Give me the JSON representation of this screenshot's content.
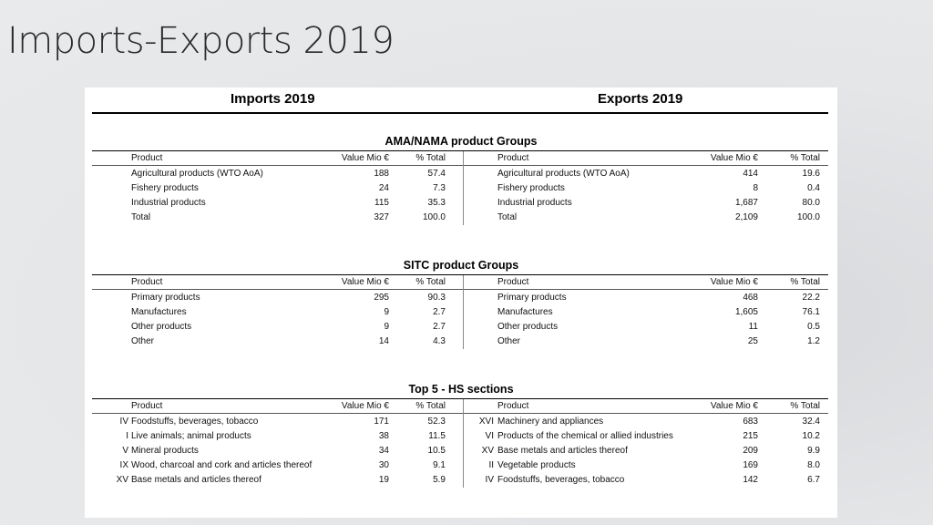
{
  "slide": {
    "title": "Imports-Exports 2019"
  },
  "headers": {
    "imports": "Imports 2019",
    "exports": "Exports 2019"
  },
  "columns": {
    "product": "Product",
    "value": "Value Mio €",
    "pct": "% Total"
  },
  "sections": [
    {
      "title": "AMA/NAMA product Groups",
      "imports": [
        {
          "num": "",
          "product": "Agricultural products (WTO AoA)",
          "value": "188",
          "pct": "57.4"
        },
        {
          "num": "",
          "product": "Fishery products",
          "value": "24",
          "pct": "7.3"
        },
        {
          "num": "",
          "product": "Industrial products",
          "value": "115",
          "pct": "35.3"
        },
        {
          "num": "",
          "product": "Total",
          "value": "327",
          "pct": "100.0"
        }
      ],
      "exports": [
        {
          "num": "",
          "product": "Agricultural products (WTO AoA)",
          "value": "414",
          "pct": "19.6"
        },
        {
          "num": "",
          "product": "Fishery products",
          "value": "8",
          "pct": "0.4"
        },
        {
          "num": "",
          "product": "Industrial products",
          "value": "1,687",
          "pct": "80.0"
        },
        {
          "num": "",
          "product": "Total",
          "value": "2,109",
          "pct": "100.0"
        }
      ]
    },
    {
      "title": "SITC product Groups",
      "imports": [
        {
          "num": "",
          "product": "Primary products",
          "value": "295",
          "pct": "90.3"
        },
        {
          "num": "",
          "product": "Manufactures",
          "value": "9",
          "pct": "2.7"
        },
        {
          "num": "",
          "product": "Other products",
          "value": "9",
          "pct": "2.7"
        },
        {
          "num": "",
          "product": "Other",
          "value": "14",
          "pct": "4.3"
        }
      ],
      "exports": [
        {
          "num": "",
          "product": "Primary products",
          "value": "468",
          "pct": "22.2"
        },
        {
          "num": "",
          "product": "Manufactures",
          "value": "1,605",
          "pct": "76.1"
        },
        {
          "num": "",
          "product": "Other products",
          "value": "11",
          "pct": "0.5"
        },
        {
          "num": "",
          "product": "Other",
          "value": "25",
          "pct": "1.2"
        }
      ]
    },
    {
      "title": "Top 5  - HS sections",
      "imports": [
        {
          "num": "IV",
          "product": "Foodstuffs, beverages, tobacco",
          "value": "171",
          "pct": "52.3"
        },
        {
          "num": "I",
          "product": "Live animals;  animal products",
          "value": "38",
          "pct": "11.5"
        },
        {
          "num": "V",
          "product": "Mineral products",
          "value": "34",
          "pct": "10.5"
        },
        {
          "num": "IX",
          "product": "Wood, charcoal and cork and articles thereof",
          "value": "30",
          "pct": "9.1"
        },
        {
          "num": "XV",
          "product": "Base metals and articles thereof",
          "value": "19",
          "pct": "5.9"
        }
      ],
      "exports": [
        {
          "num": "XVI",
          "product": "Machinery and appliances",
          "value": "683",
          "pct": "32.4"
        },
        {
          "num": "VI",
          "product": "Products of the chemical or allied industries",
          "value": "215",
          "pct": "10.2"
        },
        {
          "num": "XV",
          "product": "Base metals and articles thereof",
          "value": "209",
          "pct": "9.9"
        },
        {
          "num": "II",
          "product": "Vegetable products",
          "value": "169",
          "pct": "8.0"
        },
        {
          "num": "IV",
          "product": "Foodstuffs, beverages, tobacco",
          "value": "142",
          "pct": "6.7"
        }
      ]
    }
  ]
}
